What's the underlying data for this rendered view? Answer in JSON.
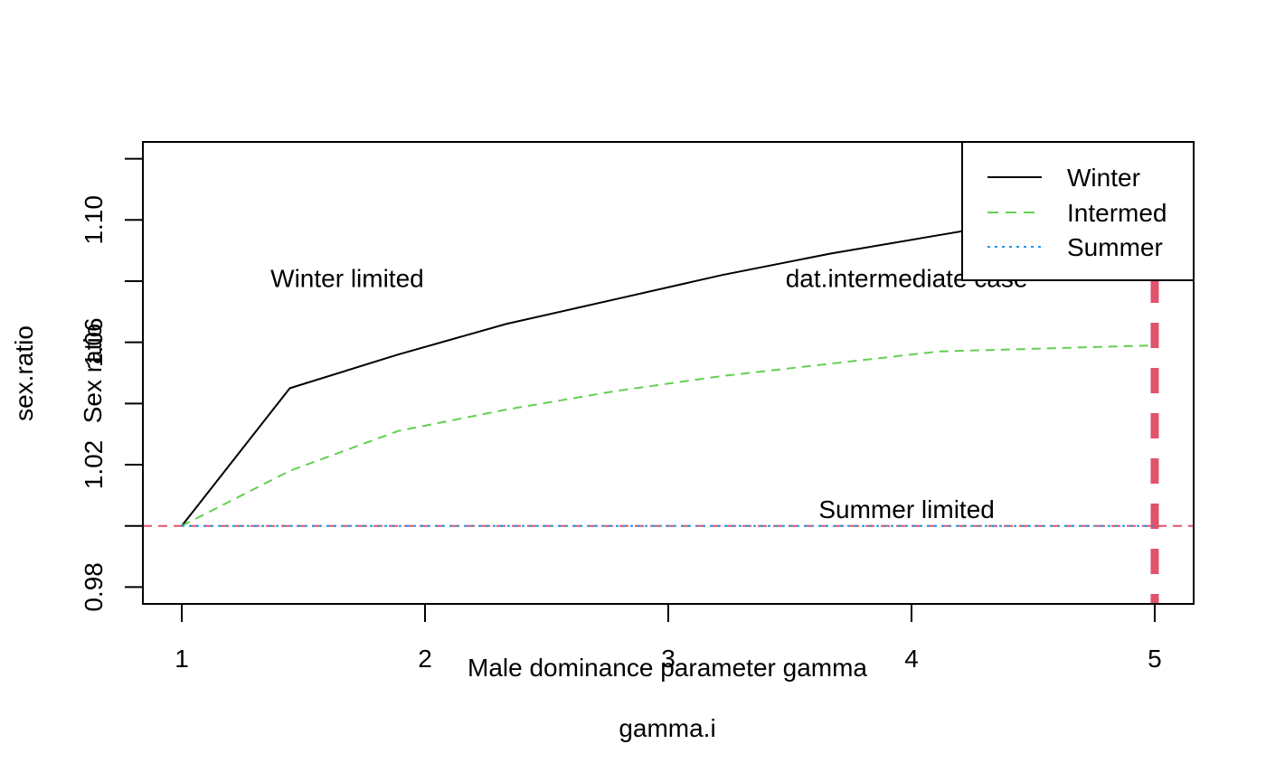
{
  "chart_data": {
    "type": "line",
    "x": [
      1.0,
      1.444,
      1.889,
      2.333,
      2.778,
      3.222,
      3.667,
      4.111,
      4.556,
      5.0
    ],
    "xlim": [
      0.84,
      5.16
    ],
    "ylim": [
      0.9745,
      1.1255
    ],
    "x_ticks": [
      1,
      2,
      3,
      4,
      5
    ],
    "x_tick_labels": [
      "1",
      "2",
      "3",
      "4",
      "5"
    ],
    "y_ticks": [
      0.98,
      1.0,
      1.02,
      1.04,
      1.06,
      1.08,
      1.1,
      1.12
    ],
    "y_tick_labels": [
      "0.98",
      "",
      "1.02",
      "",
      "1.06",
      "",
      "1.10",
      ""
    ],
    "xlabel": "gamma.i",
    "xlabel_overlay": "Male dominance parameter gamma",
    "ylabel": "sex.ratio",
    "ylabel_overlay": "Sex ratio",
    "grid": false,
    "legend_position": "top-right",
    "series": [
      {
        "name": "Winter",
        "color": "#000000",
        "style": "solid",
        "values": [
          1.0,
          1.045,
          1.056,
          1.066,
          1.074,
          1.082,
          1.089,
          1.095,
          1.101,
          1.106
        ]
      },
      {
        "name": "Intermed",
        "color": "#61D04F",
        "style": "dashed",
        "values": [
          1.0,
          1.018,
          1.031,
          1.038,
          1.044,
          1.049,
          1.053,
          1.057,
          1.058,
          1.059
        ]
      },
      {
        "name": "Summer",
        "color": "#2297E6",
        "style": "dotted",
        "values": [
          1.0,
          1.0,
          1.0,
          1.0,
          1.0,
          1.0,
          1.0,
          1.0,
          1.0,
          1.0
        ]
      }
    ],
    "reference_lines": [
      {
        "orientation": "horizontal",
        "value": 1.0,
        "color": "#DF536B",
        "style": "dashed"
      },
      {
        "orientation": "vertical",
        "value": 5.0,
        "color": "#DF536B",
        "style": "dashed-thick"
      }
    ],
    "annotations": [
      {
        "text": "Winter limited",
        "x": 1.68,
        "y": 1.081
      },
      {
        "text": "dat.intermediate case",
        "x": 3.98,
        "y": 1.081
      },
      {
        "text": "Summer limited",
        "x": 3.98,
        "y": 1.0055
      }
    ]
  }
}
